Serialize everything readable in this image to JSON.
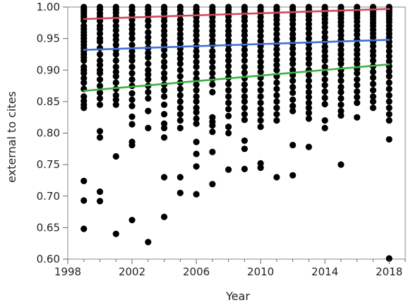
{
  "chart_data": {
    "type": "scatter",
    "title": "",
    "xlabel": "Year",
    "ylabel": "external to cites",
    "xlim": [
      1998,
      2019
    ],
    "ylim": [
      0.6,
      1.0
    ],
    "grid": false,
    "legend": "none",
    "x_ticks": [
      1998,
      2002,
      2006,
      2010,
      2014,
      2018
    ],
    "x_tick_labels": [
      "1998",
      "2002",
      "2006",
      "2010",
      "2014",
      "2018"
    ],
    "y_ticks": [
      0.6,
      0.65,
      0.7,
      0.75,
      0.8,
      0.85,
      0.9,
      0.95,
      1.0
    ],
    "y_tick_labels": [
      "0.60",
      "0.65",
      "0.70",
      "0.75",
      "0.80",
      "0.85",
      "0.90",
      "0.95",
      "1.00"
    ],
    "points": [
      {
        "year": 1999,
        "values": [
          1.0,
          0.997,
          0.994,
          0.991,
          0.988,
          0.985,
          0.982,
          0.978,
          0.97,
          0.965,
          0.96,
          0.955,
          0.95,
          0.945,
          0.94,
          0.935,
          0.93,
          0.925,
          0.92,
          0.915,
          0.905,
          0.9,
          0.895,
          0.887,
          0.88,
          0.87,
          0.858,
          0.851,
          0.845,
          0.84,
          0.724,
          0.693,
          0.648
        ]
      },
      {
        "year": 2000,
        "values": [
          1.0,
          0.996,
          0.99,
          0.985,
          0.978,
          0.97,
          0.965,
          0.958,
          0.95,
          0.945,
          0.935,
          0.925,
          0.915,
          0.908,
          0.9,
          0.895,
          0.885,
          0.875,
          0.864,
          0.855,
          0.845,
          0.803,
          0.793,
          0.707,
          0.692
        ]
      },
      {
        "year": 2001,
        "values": [
          1.0,
          0.996,
          0.991,
          0.985,
          0.978,
          0.97,
          0.963,
          0.955,
          0.948,
          0.94,
          0.932,
          0.925,
          0.915,
          0.905,
          0.897,
          0.89,
          0.88,
          0.87,
          0.86,
          0.853,
          0.845,
          0.763,
          0.64
        ]
      },
      {
        "year": 2002,
        "values": [
          1.0,
          0.995,
          0.988,
          0.98,
          0.972,
          0.965,
          0.958,
          0.95,
          0.94,
          0.93,
          0.922,
          0.915,
          0.905,
          0.895,
          0.885,
          0.875,
          0.863,
          0.853,
          0.843,
          0.826,
          0.814,
          0.786,
          0.781,
          0.662
        ]
      },
      {
        "year": 2003,
        "values": [
          1.0,
          0.996,
          0.99,
          0.985,
          0.978,
          0.97,
          0.96,
          0.952,
          0.944,
          0.935,
          0.927,
          0.92,
          0.91,
          0.9,
          0.893,
          0.885,
          0.875,
          0.865,
          0.855,
          0.835,
          0.808,
          0.627
        ]
      },
      {
        "year": 2004,
        "values": [
          1.0,
          0.996,
          0.99,
          0.984,
          0.978,
          0.97,
          0.962,
          0.955,
          0.947,
          0.94,
          0.932,
          0.923,
          0.913,
          0.905,
          0.895,
          0.887,
          0.877,
          0.868,
          0.858,
          0.845,
          0.83,
          0.815,
          0.808,
          0.793,
          0.73,
          0.667
        ]
      },
      {
        "year": 2005,
        "values": [
          1.0,
          0.995,
          0.988,
          0.98,
          0.973,
          0.965,
          0.957,
          0.95,
          0.942,
          0.934,
          0.926,
          0.918,
          0.91,
          0.9,
          0.89,
          0.88,
          0.87,
          0.86,
          0.85,
          0.84,
          0.83,
          0.82,
          0.808,
          0.73,
          0.705
        ]
      },
      {
        "year": 2006,
        "values": [
          1.0,
          0.996,
          0.99,
          0.984,
          0.977,
          0.97,
          0.962,
          0.955,
          0.947,
          0.938,
          0.93,
          0.922,
          0.913,
          0.905,
          0.895,
          0.886,
          0.877,
          0.868,
          0.858,
          0.85,
          0.84,
          0.833,
          0.823,
          0.815,
          0.786,
          0.767,
          0.747,
          0.703
        ]
      },
      {
        "year": 2007,
        "values": [
          1.0,
          0.995,
          0.99,
          0.984,
          0.977,
          0.97,
          0.962,
          0.955,
          0.947,
          0.94,
          0.93,
          0.922,
          0.913,
          0.904,
          0.895,
          0.886,
          0.877,
          0.865,
          0.825,
          0.818,
          0.812,
          0.802,
          0.77,
          0.719
        ]
      },
      {
        "year": 2008,
        "values": [
          1.0,
          0.996,
          0.99,
          0.985,
          0.978,
          0.97,
          0.962,
          0.955,
          0.947,
          0.94,
          0.932,
          0.923,
          0.915,
          0.906,
          0.897,
          0.888,
          0.878,
          0.868,
          0.858,
          0.848,
          0.838,
          0.827,
          0.81,
          0.8,
          0.742
        ]
      },
      {
        "year": 2009,
        "values": [
          1.0,
          0.996,
          0.99,
          0.984,
          0.978,
          0.97,
          0.962,
          0.955,
          0.947,
          0.94,
          0.932,
          0.924,
          0.915,
          0.905,
          0.896,
          0.887,
          0.877,
          0.868,
          0.858,
          0.85,
          0.84,
          0.83,
          0.821,
          0.788,
          0.775,
          0.743
        ]
      },
      {
        "year": 2010,
        "values": [
          1.0,
          0.995,
          0.99,
          0.984,
          0.977,
          0.97,
          0.962,
          0.954,
          0.946,
          0.938,
          0.93,
          0.922,
          0.913,
          0.905,
          0.897,
          0.888,
          0.878,
          0.868,
          0.858,
          0.848,
          0.838,
          0.83,
          0.82,
          0.81,
          0.752,
          0.745
        ]
      },
      {
        "year": 2011,
        "values": [
          1.0,
          0.996,
          0.991,
          0.986,
          0.98,
          0.973,
          0.965,
          0.957,
          0.949,
          0.941,
          0.933,
          0.925,
          0.916,
          0.908,
          0.9,
          0.89,
          0.88,
          0.87,
          0.86,
          0.85,
          0.84,
          0.83,
          0.82,
          0.73
        ]
      },
      {
        "year": 2012,
        "values": [
          1.0,
          0.996,
          0.991,
          0.986,
          0.98,
          0.973,
          0.965,
          0.957,
          0.95,
          0.942,
          0.934,
          0.926,
          0.917,
          0.91,
          0.9,
          0.892,
          0.883,
          0.873,
          0.864,
          0.853,
          0.843,
          0.835,
          0.781,
          0.733
        ]
      },
      {
        "year": 2013,
        "values": [
          1.0,
          0.996,
          0.991,
          0.986,
          0.98,
          0.973,
          0.966,
          0.958,
          0.95,
          0.942,
          0.934,
          0.926,
          0.918,
          0.91,
          0.9,
          0.892,
          0.883,
          0.874,
          0.865,
          0.857,
          0.848,
          0.84,
          0.832,
          0.823,
          0.778
        ]
      },
      {
        "year": 2014,
        "values": [
          1.0,
          0.996,
          0.992,
          0.987,
          0.981,
          0.975,
          0.968,
          0.96,
          0.952,
          0.945,
          0.937,
          0.93,
          0.922,
          0.915,
          0.905,
          0.895,
          0.885,
          0.876,
          0.866,
          0.856,
          0.846,
          0.82,
          0.808
        ]
      },
      {
        "year": 2015,
        "values": [
          1.0,
          0.996,
          0.992,
          0.987,
          0.982,
          0.976,
          0.97,
          0.962,
          0.955,
          0.948,
          0.94,
          0.932,
          0.925,
          0.917,
          0.91,
          0.9,
          0.892,
          0.883,
          0.873,
          0.865,
          0.855,
          0.845,
          0.835,
          0.828,
          0.75
        ]
      },
      {
        "year": 2016,
        "values": [
          1.0,
          0.996,
          0.992,
          0.988,
          0.983,
          0.977,
          0.97,
          0.963,
          0.956,
          0.948,
          0.94,
          0.932,
          0.925,
          0.917,
          0.91,
          0.902,
          0.895,
          0.885,
          0.876,
          0.866,
          0.857,
          0.848,
          0.825
        ]
      },
      {
        "year": 2017,
        "values": [
          1.0,
          0.997,
          0.993,
          0.989,
          0.985,
          0.98,
          0.975,
          0.97,
          0.964,
          0.958,
          0.952,
          0.945,
          0.938,
          0.93,
          0.923,
          0.915,
          0.906,
          0.897,
          0.888,
          0.878,
          0.868,
          0.858,
          0.85,
          0.84
        ]
      },
      {
        "year": 2018,
        "values": [
          1.0,
          0.997,
          0.994,
          0.99,
          0.986,
          0.981,
          0.976,
          0.97,
          0.964,
          0.958,
          0.952,
          0.945,
          0.938,
          0.93,
          0.922,
          0.914,
          0.906,
          0.898,
          0.89,
          0.88,
          0.87,
          0.86,
          0.85,
          0.84,
          0.83,
          0.82,
          0.79,
          0.601
        ]
      }
    ],
    "trend_lines": [
      {
        "color": "#d1495b",
        "x": [
          1999,
          2018
        ],
        "y": [
          0.981,
          0.997
        ]
      },
      {
        "color": "#3f6fd6",
        "x": [
          1999,
          2018
        ],
        "y": [
          0.932,
          0.948
        ]
      },
      {
        "color": "#3fb043",
        "x": [
          1999,
          2018
        ],
        "y": [
          0.867,
          0.909
        ]
      }
    ],
    "marker_color": "#000000"
  }
}
